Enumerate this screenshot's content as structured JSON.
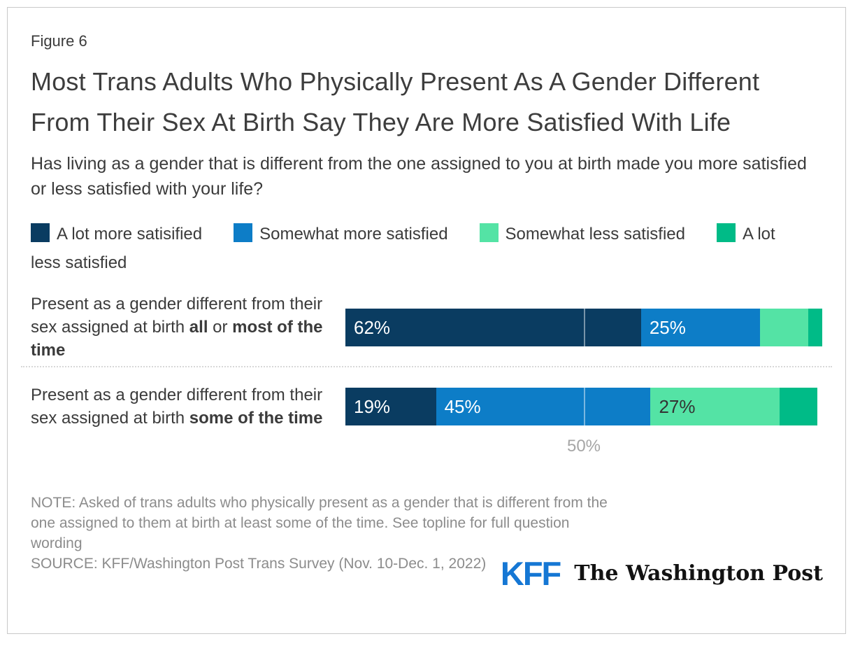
{
  "figure_label": "Figure 6",
  "title": "Most Trans Adults Who Physically Present As A Gender Different From Their Sex At Birth Say They Are More Satisfied With Life",
  "subtitle": "Has living as a gender that is different from the one assigned to you at birth made you more satisfied or less satisfied with your life?",
  "colors": {
    "navy": "#0a3c61",
    "blue": "#0d7dc7",
    "light_green": "#54e3a5",
    "green": "#00bb87",
    "axis_gray": "#a6a6a6",
    "note_gray": "#8c8c8c",
    "kff_blue": "#1577d4"
  },
  "legend": {
    "items": [
      {
        "label": "A lot more satisified",
        "color": "#0a3c61"
      },
      {
        "label": "Somewhat more satisfied",
        "color": "#0d7dc7"
      },
      {
        "label": "Somewhat less satisfied",
        "color": "#54e3a5"
      },
      {
        "label": "A lot less satisfied",
        "color": "#00bb87"
      }
    ]
  },
  "chart_data": {
    "type": "bar",
    "stacked": true,
    "orientation": "horizontal",
    "xlim": [
      0,
      100
    ],
    "gridline_x": 50,
    "tick_labels": [
      "50%"
    ],
    "grid": "single vertical gridline at 50% visible through bars",
    "legend_position": "top",
    "categories": [
      "Present as a gender different from their sex assigned at birth all or most of the time",
      "Present as a gender different from their sex assigned at birth some of the time"
    ],
    "category_label_parts": [
      [
        {
          "text": "Present as a gender different from their sex assigned at birth ",
          "bold": false
        },
        {
          "text": "all",
          "bold": true
        },
        {
          "text": " or ",
          "bold": false
        },
        {
          "text": "most of the time",
          "bold": true
        }
      ],
      [
        {
          "text": "Present as a gender different from their sex assigned at birth ",
          "bold": false
        },
        {
          "text": "some of the time",
          "bold": true
        }
      ]
    ],
    "series": [
      {
        "name": "A lot more satisified",
        "color": "#0a3c61",
        "values": [
          62,
          19
        ],
        "labels": [
          "62%",
          "19%"
        ],
        "label_color": "#ffffff"
      },
      {
        "name": "Somewhat more satisfied",
        "color": "#0d7dc7",
        "values": [
          25,
          45
        ],
        "labels": [
          "25%",
          "45%"
        ],
        "label_color": "#ffffff"
      },
      {
        "name": "Somewhat less satisfied",
        "color": "#54e3a5",
        "values": [
          10,
          27
        ],
        "labels": [
          "",
          "27%"
        ],
        "label_color": "#333333"
      },
      {
        "name": "A lot less satisfied",
        "color": "#00bb87",
        "values": [
          3,
          8
        ],
        "labels": [
          "",
          ""
        ],
        "label_color": "#ffffff"
      }
    ]
  },
  "footer": {
    "note": "NOTE: Asked of trans adults who physically present as a gender that is different from the one assigned to them at birth at least some of the time. See topline for full question wording",
    "source": "SOURCE: KFF/Washington Post Trans Survey (Nov. 10-Dec. 1, 2022)",
    "logos": {
      "kff": "KFF",
      "wapo": "The Washington Post"
    }
  }
}
